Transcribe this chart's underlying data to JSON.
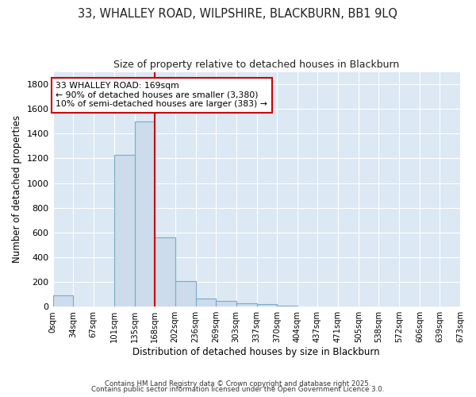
{
  "title": "33, WHALLEY ROAD, WILPSHIRE, BLACKBURN, BB1 9LQ",
  "subtitle": "Size of property relative to detached houses in Blackburn",
  "xlabel": "Distribution of detached houses by size in Blackburn",
  "ylabel": "Number of detached properties",
  "bin_edges": [
    0,
    34,
    67,
    101,
    135,
    168,
    202,
    236,
    269,
    303,
    337,
    370,
    404,
    437,
    471,
    505,
    538,
    572,
    606,
    639,
    673
  ],
  "bin_labels": [
    "0sqm",
    "34sqm",
    "67sqm",
    "101sqm",
    "135sqm",
    "168sqm",
    "202sqm",
    "236sqm",
    "269sqm",
    "303sqm",
    "337sqm",
    "370sqm",
    "404sqm",
    "437sqm",
    "471sqm",
    "505sqm",
    "538sqm",
    "572sqm",
    "606sqm",
    "639sqm",
    "673sqm"
  ],
  "bar_heights": [
    90,
    0,
    0,
    1230,
    1500,
    560,
    210,
    65,
    45,
    30,
    20,
    10,
    3,
    2,
    1,
    0,
    0,
    0,
    0,
    0
  ],
  "bar_color": "#ccdcec",
  "bar_edge_color": "#7aaac8",
  "property_line_x": 168,
  "property_line_color": "#cc0000",
  "annotation_text": "33 WHALLEY ROAD: 169sqm\n← 90% of detached houses are smaller (3,380)\n10% of semi-detached houses are larger (383) →",
  "ylim": [
    0,
    1900
  ],
  "yticks": [
    0,
    200,
    400,
    600,
    800,
    1000,
    1200,
    1400,
    1600,
    1800
  ],
  "plot_bg_color": "#dce8f4",
  "fig_bg_color": "#ffffff",
  "grid_color": "#ffffff",
  "footer_line1": "Contains HM Land Registry data © Crown copyright and database right 2025.",
  "footer_line2": "Contains public sector information licensed under the Open Government Licence 3.0."
}
